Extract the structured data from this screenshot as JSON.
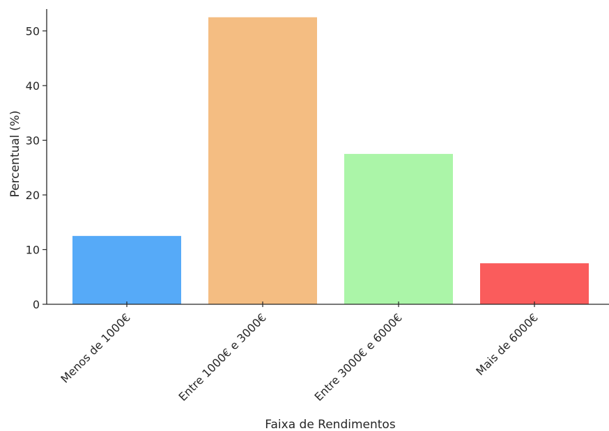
{
  "chart_data": {
    "type": "bar",
    "title": "",
    "xlabel": "Faixa de Rendimentos",
    "ylabel": "Percentual (%)",
    "categories": [
      "Menos de 1000€",
      "Entre 1000€ e 3000€",
      "Entre 3000€ e 6000€",
      "Mais de 6000€"
    ],
    "values": [
      12.5,
      52.5,
      27.5,
      7.5
    ],
    "colors": [
      "#56aaf8",
      "#f4bd82",
      "#abf5a8",
      "#fa5c5c"
    ],
    "ylim": [
      0,
      54
    ],
    "yticks": [
      0,
      10,
      20,
      30,
      40,
      50
    ],
    "grid": false,
    "legend": "none"
  }
}
